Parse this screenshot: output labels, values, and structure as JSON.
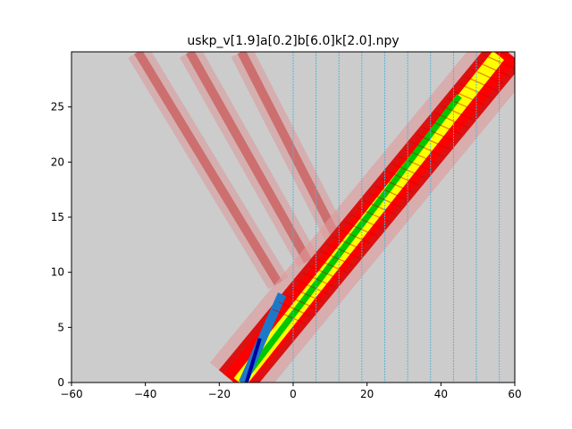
{
  "chart_data": {
    "type": "heatmap",
    "title": "uskp_v[1.9]a[0.2]b[6.0]k[2.0].npy",
    "xlabel": "",
    "ylabel": "",
    "xlim": [
      -60,
      60
    ],
    "ylim": [
      0,
      30
    ],
    "x_ticks": [
      -60,
      -40,
      -20,
      0,
      20,
      40,
      60
    ],
    "x_tick_labels": [
      "−60",
      "−40",
      "−20",
      "0",
      "20",
      "40",
      "60"
    ],
    "y_ticks": [
      0,
      5,
      10,
      15,
      20,
      25
    ],
    "y_tick_labels": [
      "0",
      "5",
      "10",
      "15",
      "20",
      "25"
    ],
    "grid": false,
    "background_color": "#cccccc",
    "colormap": [
      "#cccccc",
      "#d9a0a0",
      "#c81e1e",
      "#ff0000",
      "#ffff00",
      "#00c800",
      "#1e78c8",
      "#0000a0"
    ],
    "vertical_lines": {
      "color": "#4fb3d9",
      "x": [
        0,
        6.2,
        12.4,
        18.6,
        24.8,
        31.0,
        37.2,
        43.4,
        49.6,
        55.8
      ]
    },
    "features": [
      {
        "name": "main_beam",
        "x_start": -16,
        "y_start": 0,
        "x_end": 58,
        "y_end": 30
      },
      {
        "name": "reflected_beam_1",
        "x_start": -4,
        "y_start": 9,
        "x_end": -42,
        "y_end": 30
      },
      {
        "name": "reflected_beam_2",
        "x_start": 4,
        "y_start": 11,
        "x_end": -28,
        "y_end": 30
      },
      {
        "name": "reflected_beam_3",
        "x_start": 12,
        "y_start": 13,
        "x_end": -14,
        "y_end": 30
      }
    ]
  }
}
